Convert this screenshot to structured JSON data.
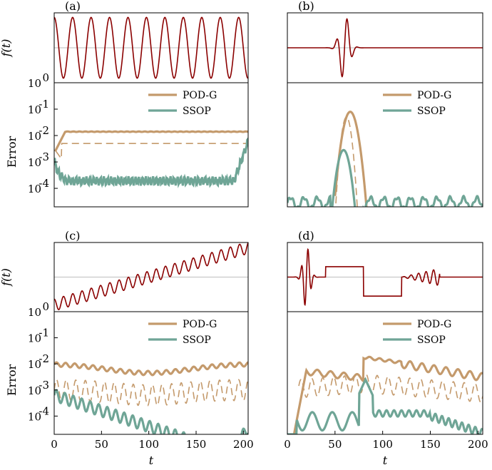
{
  "chart_data": [
    {
      "panel": "(a)",
      "type": "line",
      "top": {
        "ylabel": "f(t)",
        "series": [
          {
            "values_desc": "sine",
            "freq_cycles": 10.5
          }
        ]
      },
      "bottom": {
        "ylabel": "Error",
        "yticks": [
          "10-4",
          "10-3",
          "10-2",
          "10-1",
          "10 0"
        ],
        "legend": [
          "POD-G",
          "SSOP"
        ]
      }
    },
    {
      "panel": "(b)",
      "type": "line",
      "top": {
        "ylabel": ""
      },
      "bottom": {
        "ylabel": "",
        "legend": [
          "POD-G",
          "SSOP"
        ]
      }
    },
    {
      "panel": "(c)",
      "type": "line",
      "top": {
        "ylabel": "f(t)"
      },
      "bottom": {
        "ylabel": "Error",
        "legend": [
          "POD-G",
          "SSOP"
        ]
      }
    },
    {
      "panel": "(d)",
      "type": "line",
      "top": {
        "ylabel": ""
      },
      "bottom": {
        "ylabel": "",
        "legend": [
          "POD-G",
          "SSOP"
        ]
      }
    }
  ],
  "labels": {
    "a": "(a)",
    "b": "(b)",
    "c": "(c)",
    "d": "(d)",
    "ft": "f(t)",
    "error": "Error",
    "t": "t",
    "pod": "POD-G",
    "ssop": "SSOP",
    "e0": "0",
    "em1": "-1",
    "em2": "-2",
    "em3": "-3",
    "em4": "-4",
    "ten": "10"
  },
  "xaxis": {
    "ticks": [
      0,
      50,
      100,
      150,
      200
    ],
    "xlim": [
      0,
      205
    ],
    "label": "t"
  },
  "colors": {
    "signal": "#8b0000",
    "podg": "#c49a6c",
    "ssop": "#6fa596",
    "ref": "#bdbdbd"
  }
}
